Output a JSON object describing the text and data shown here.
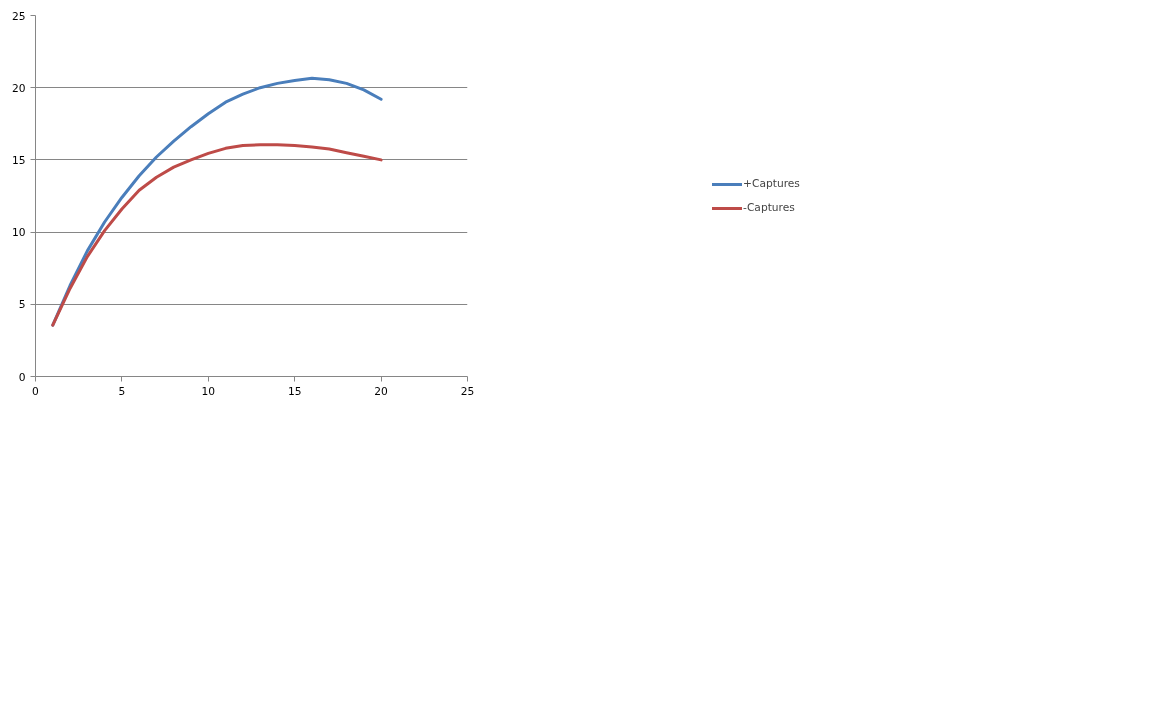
{
  "chart_data": {
    "type": "line",
    "x": [
      1,
      2,
      3,
      4,
      5,
      6,
      7,
      8,
      9,
      10,
      11,
      12,
      13,
      14,
      15,
      16,
      17,
      18,
      19,
      20
    ],
    "series": [
      {
        "name": "+Captures",
        "color": "#4a7ebb",
        "values": [
          3.56,
          6.3,
          8.7,
          10.7,
          12.4,
          13.9,
          15.2,
          16.3,
          17.3,
          18.2,
          19.0,
          19.55,
          20.0,
          20.3,
          20.5,
          20.65,
          20.55,
          20.3,
          19.85,
          19.2
        ]
      },
      {
        "name": "-Captures",
        "color": "#be4b48",
        "values": [
          3.56,
          6.1,
          8.3,
          10.1,
          11.6,
          12.9,
          13.8,
          14.5,
          15.0,
          15.45,
          15.8,
          16.0,
          16.05,
          16.05,
          16.0,
          15.9,
          15.75,
          15.5,
          15.25,
          15.0
        ]
      }
    ],
    "xlim": [
      0,
      25
    ],
    "xticks": [
      0,
      5,
      10,
      15,
      20,
      25
    ],
    "ylim": [
      0,
      25
    ],
    "yticks": [
      0,
      5,
      10,
      15,
      20,
      25
    ],
    "grid": "y",
    "legend": "right",
    "marker": "none",
    "line_style": "solid"
  }
}
